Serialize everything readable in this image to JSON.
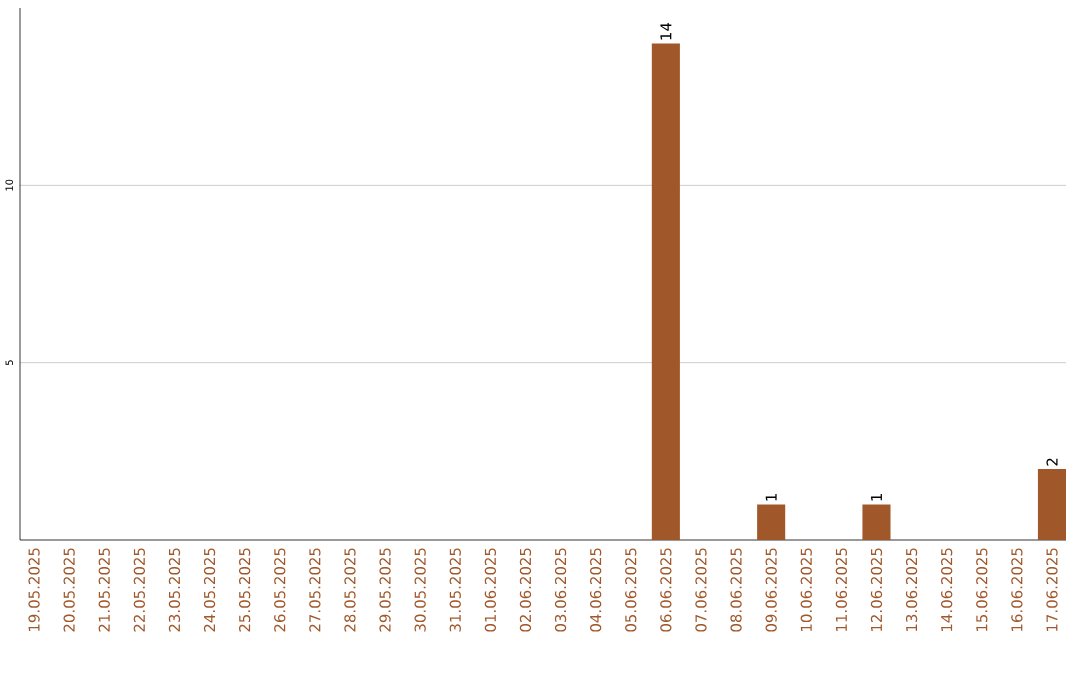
{
  "chart_data": {
    "type": "bar",
    "categories": [
      "19.05.2025",
      "20.05.2025",
      "21.05.2025",
      "22.05.2025",
      "23.05.2025",
      "24.05.2025",
      "25.05.2025",
      "26.05.2025",
      "27.05.2025",
      "28.05.2025",
      "29.05.2025",
      "30.05.2025",
      "31.05.2025",
      "01.06.2025",
      "02.06.2025",
      "03.06.2025",
      "04.06.2025",
      "05.06.2025",
      "06.06.2025",
      "07.06.2025",
      "08.06.2025",
      "09.06.2025",
      "10.06.2025",
      "11.06.2025",
      "12.06.2025",
      "13.06.2025",
      "14.06.2025",
      "15.06.2025",
      "16.06.2025",
      "17.06.2025"
    ],
    "values": [
      0,
      0,
      0,
      0,
      0,
      0,
      0,
      0,
      0,
      0,
      0,
      0,
      0,
      0,
      0,
      0,
      0,
      0,
      14,
      0,
      0,
      1,
      0,
      0,
      1,
      0,
      0,
      0,
      0,
      2
    ],
    "value_labels": [
      null,
      null,
      null,
      null,
      null,
      null,
      null,
      null,
      null,
      null,
      null,
      null,
      null,
      null,
      null,
      null,
      null,
      null,
      "14",
      null,
      null,
      "1",
      null,
      null,
      "1",
      null,
      null,
      null,
      null,
      "2"
    ],
    "color": "#a0572a",
    "ylim": [
      0,
      15
    ],
    "yticks": [
      5,
      10
    ],
    "grid": "y"
  }
}
